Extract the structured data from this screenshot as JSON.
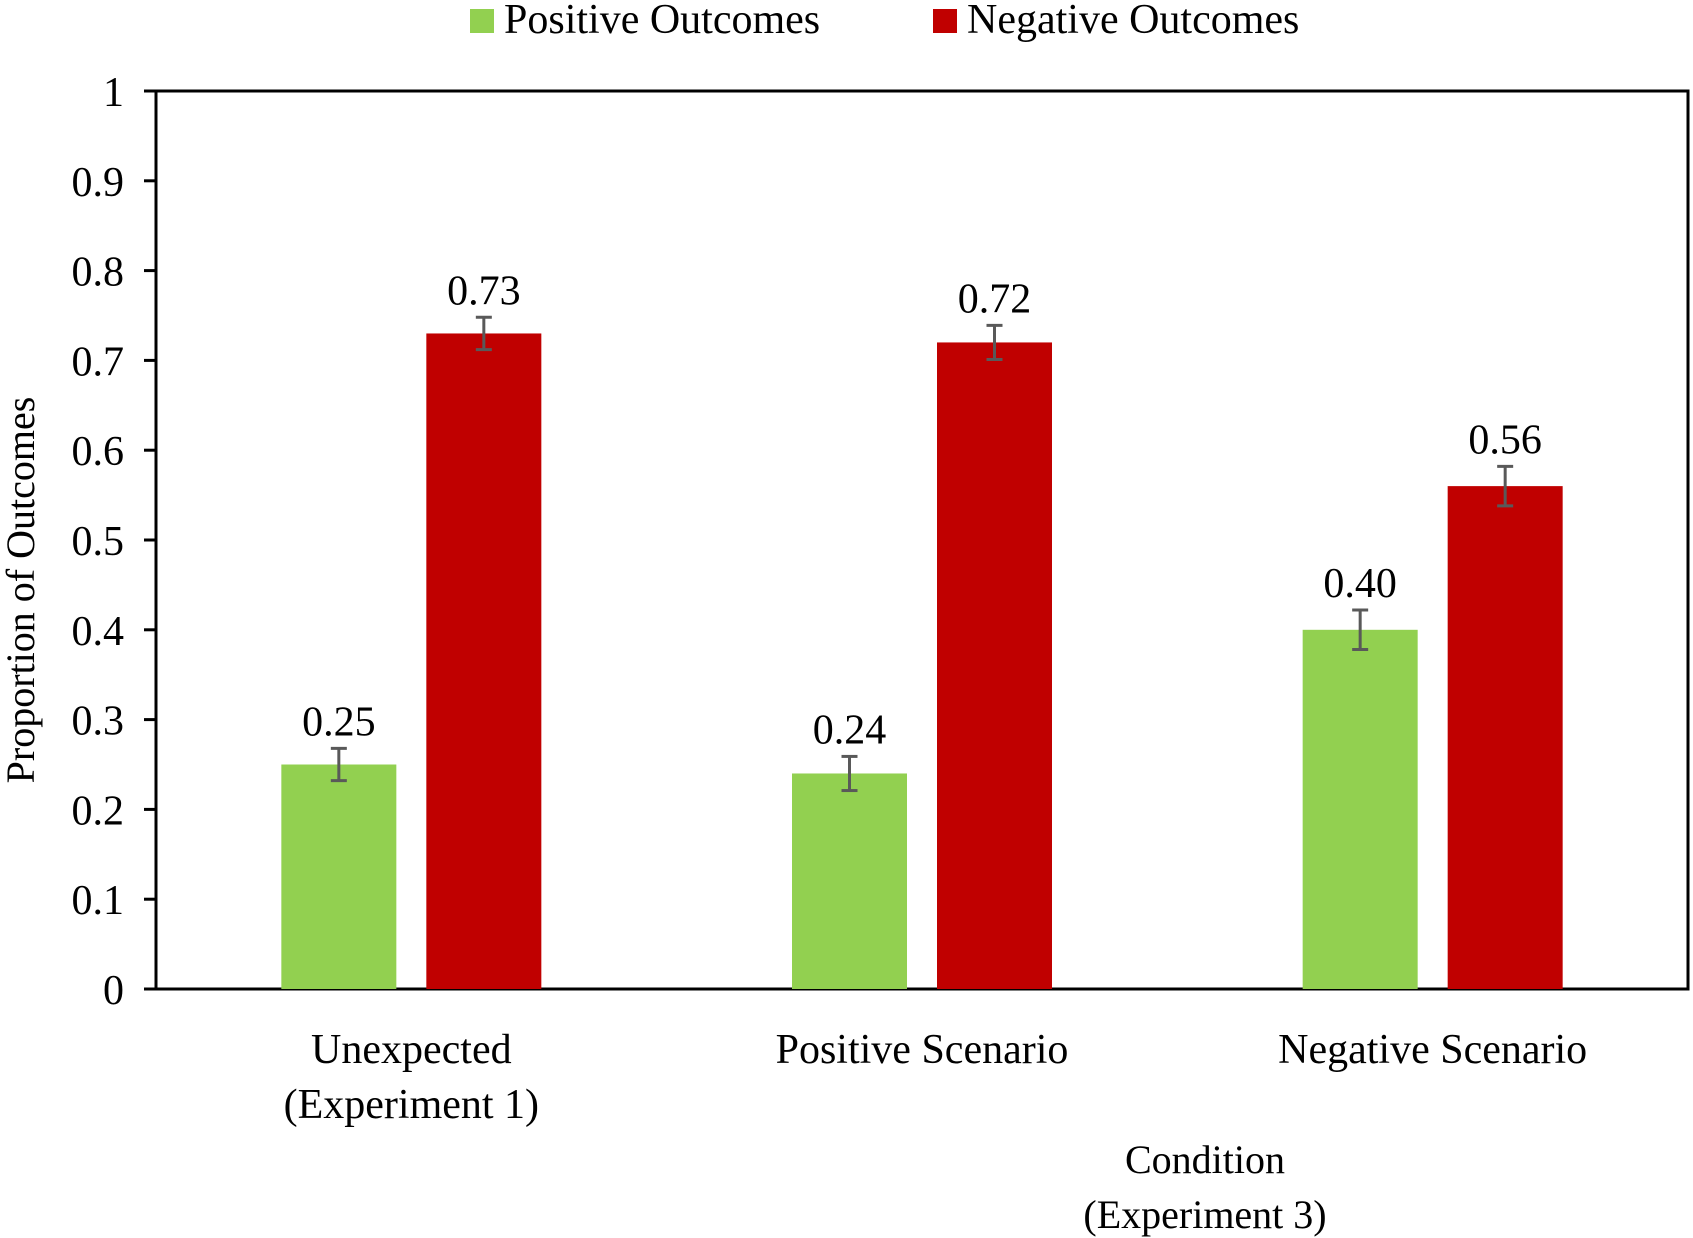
{
  "chart_data": {
    "type": "bar",
    "categories": [
      [
        "Unexpected",
        "(Experiment 1)"
      ],
      [
        "Positive Scenario"
      ],
      [
        "Negative Scenario"
      ]
    ],
    "series": [
      {
        "name": "Positive Outcomes",
        "color": "#92d050",
        "values": [
          0.25,
          0.24,
          0.4
        ],
        "labels": [
          "0.25",
          "0.24",
          "0.40"
        ],
        "errors": [
          0.018,
          0.019,
          0.022
        ]
      },
      {
        "name": "Negative Outcomes",
        "color": "#c00000",
        "values": [
          0.73,
          0.72,
          0.56
        ],
        "labels": [
          "0.73",
          "0.72",
          "0.56"
        ],
        "errors": [
          0.018,
          0.019,
          0.022
        ]
      }
    ],
    "ylabel": "Proportion of Outcomes",
    "xlabel_lines": [
      "Condition",
      "(Experiment 3)"
    ],
    "ylim": [
      0,
      1
    ],
    "yticks": [
      0,
      0.1,
      0.2,
      0.3,
      0.4,
      0.5,
      0.6,
      0.7,
      0.8,
      0.9,
      1
    ],
    "ytick_labels": [
      "0",
      "0.1",
      "0.2",
      "0.3",
      "0.4",
      "0.5",
      "0.6",
      "0.7",
      "0.8",
      "0.9",
      "1"
    ],
    "legend_position": "top-center",
    "grid": false,
    "error_bar_color": "#595959"
  }
}
